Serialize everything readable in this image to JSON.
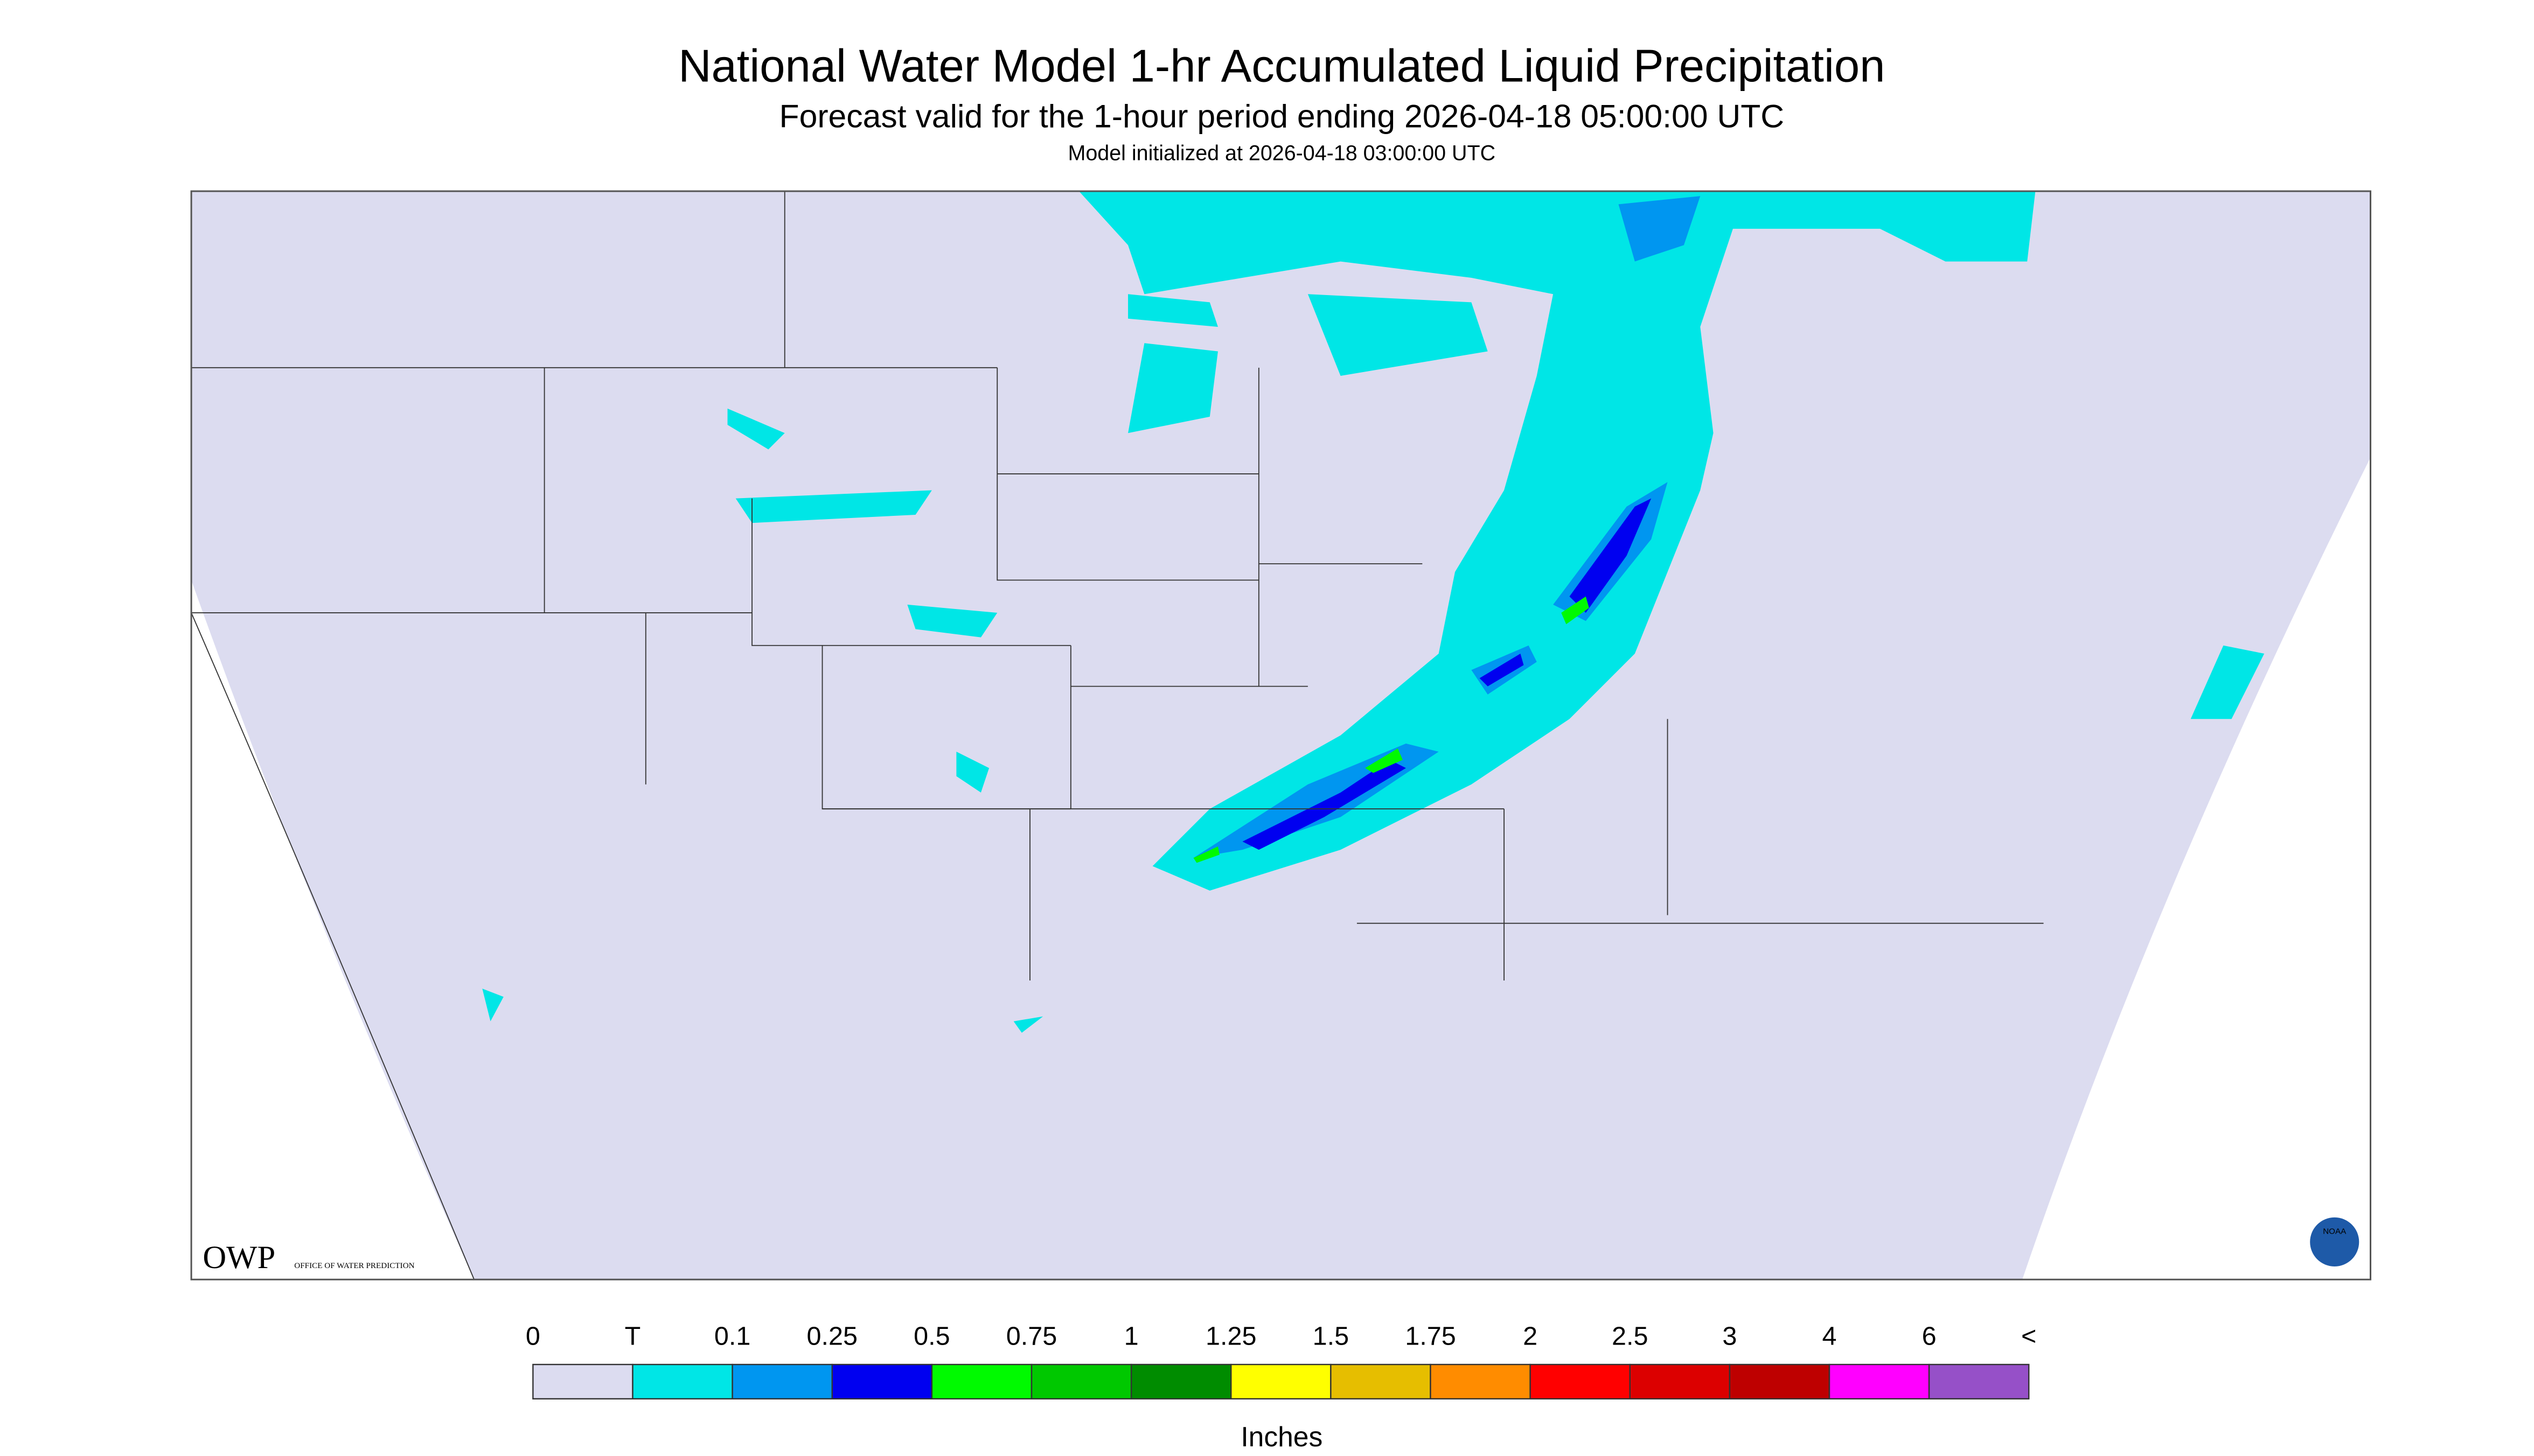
{
  "header": {
    "title": "National Water Model 1-hr Accumulated Liquid Precipitation",
    "subtitle": "Forecast valid for the 1-hour period ending 2026-04-18 05:00:00 UTC",
    "init": "Model initialized at 2026-04-18 03:00:00 UTC"
  },
  "legend": {
    "labels": [
      "0",
      "T",
      "0.1",
      "0.25",
      "0.5",
      "0.75",
      "1",
      "1.25",
      "1.5",
      "1.75",
      "2",
      "2.5",
      "3",
      "4",
      "6",
      "<"
    ],
    "colors": [
      "#dcdcf0",
      "#00e6e6",
      "#0096f0",
      "#0000f0",
      "#00fa00",
      "#00c800",
      "#008c00",
      "#ffff00",
      "#e6be00",
      "#ff8c00",
      "#ff0000",
      "#dc0000",
      "#be0000",
      "#ff00ff",
      "#9650c8"
    ],
    "unit": "Inches"
  },
  "logos": {
    "owp": "OWP",
    "owp_name": "OFFICE OF WATER PREDICTION",
    "noaa": "NOAA"
  }
}
